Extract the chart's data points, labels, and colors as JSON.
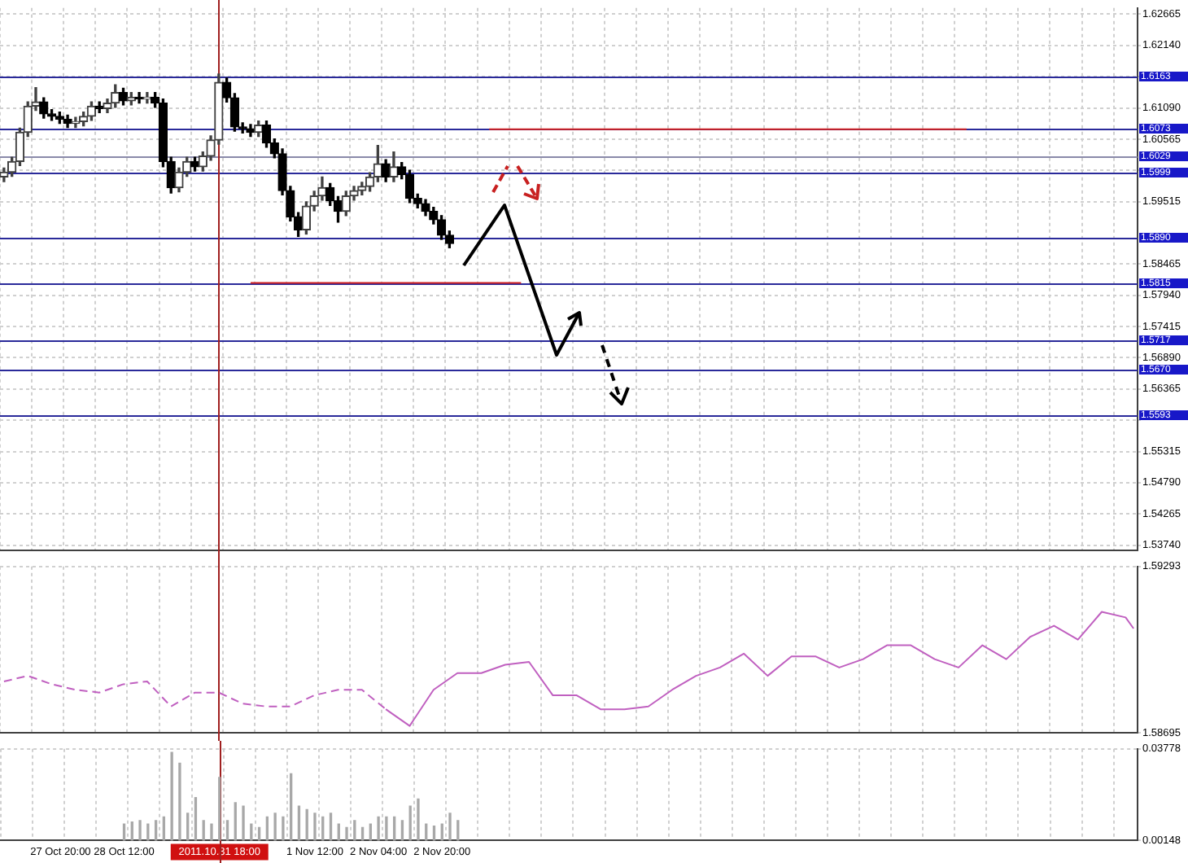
{
  "chart_data": [
    {
      "type": "candlestick",
      "categories": [
        null,
        null,
        null,
        null,
        null,
        null,
        null,
        "27 Oct 20:00",
        null,
        null,
        null,
        null,
        null,
        null,
        null,
        "28 Oct 12:00",
        null,
        null,
        null,
        null,
        null,
        null,
        null,
        null,
        null,
        null,
        null,
        "2011.10.31 18:00",
        null,
        null,
        null,
        null,
        null,
        null,
        null,
        null,
        null,
        null,
        null,
        "1 Nov 12:00",
        null,
        null,
        null,
        null,
        null,
        null,
        null,
        "2 Nov 04:00",
        null,
        null,
        null,
        null,
        null,
        null,
        null,
        "2 Nov 20:00",
        null,
        null,
        null,
        null,
        null,
        null,
        null,
        null,
        null,
        null,
        null,
        null,
        null,
        null,
        null,
        null,
        null,
        null,
        null,
        null,
        null,
        null,
        null,
        null,
        null,
        null,
        null,
        null,
        null,
        null,
        null,
        null,
        null,
        null,
        null,
        null,
        null,
        null,
        null,
        null,
        null,
        null,
        null,
        null,
        null,
        null,
        null,
        null,
        null,
        null,
        null,
        null,
        null,
        null,
        null,
        null,
        null,
        null,
        null,
        null,
        null,
        null,
        null,
        null,
        null,
        null,
        null,
        null,
        null,
        null,
        null,
        null,
        null,
        null,
        null,
        null,
        null,
        null,
        null,
        null,
        null,
        null,
        null,
        null,
        null,
        null,
        null
      ],
      "ohlc": [
        [
          1.5993,
          1.6008,
          1.5985,
          1.6001
        ],
        [
          1.6001,
          1.6026,
          1.5994,
          1.6019
        ],
        [
          1.6019,
          1.6075,
          1.6012,
          1.6068
        ],
        [
          1.6068,
          1.6119,
          1.6061,
          1.6112
        ],
        [
          1.6112,
          1.6143,
          1.6105,
          1.6119
        ],
        [
          1.6119,
          1.6126,
          1.6092,
          1.6099
        ],
        [
          1.6099,
          1.6106,
          1.6088,
          1.6095
        ],
        [
          1.6095,
          1.6102,
          1.6083,
          1.609
        ],
        [
          1.609,
          1.6097,
          1.6076,
          1.6083
        ],
        [
          1.6083,
          1.6093,
          1.6076,
          1.6086
        ],
        [
          1.6086,
          1.6102,
          1.6079,
          1.6095
        ],
        [
          1.6095,
          1.6119,
          1.6088,
          1.6112
        ],
        [
          1.6112,
          1.6119,
          1.6101,
          1.6108
        ],
        [
          1.6108,
          1.6124,
          1.6101,
          1.6117
        ],
        [
          1.6117,
          1.6148,
          1.611,
          1.6135
        ],
        [
          1.6135,
          1.6142,
          1.6114,
          1.6121
        ],
        [
          1.6121,
          1.6135,
          1.6114,
          1.6127
        ],
        [
          1.6127,
          1.6135,
          1.6117,
          1.6124
        ],
        [
          1.6124,
          1.6135,
          1.6117,
          1.6127
        ],
        [
          1.6127,
          1.6135,
          1.611,
          1.6117
        ],
        [
          1.6117,
          1.6124,
          1.601,
          1.6019
        ],
        [
          1.6019,
          1.6026,
          1.5966,
          1.5975
        ],
        [
          1.5975,
          1.6008,
          1.5968,
          1.6001
        ],
        [
          1.6001,
          1.6026,
          1.5994,
          1.6019
        ],
        [
          1.6019,
          1.6026,
          1.6003,
          1.601
        ],
        [
          1.601,
          1.6035,
          1.6003,
          1.6028
        ],
        [
          1.6028,
          1.6062,
          1.6021,
          1.6055
        ],
        [
          1.6055,
          1.6166,
          1.6048,
          1.6152
        ],
        [
          1.6152,
          1.6159,
          1.6119,
          1.6126
        ],
        [
          1.6126,
          1.6133,
          1.607,
          1.6077
        ],
        [
          1.6077,
          1.6084,
          1.6067,
          1.6074
        ],
        [
          1.6074,
          1.6081,
          1.6061,
          1.6068
        ],
        [
          1.6068,
          1.6087,
          1.6061,
          1.608
        ],
        [
          1.608,
          1.6087,
          1.6043,
          1.605
        ],
        [
          1.605,
          1.6057,
          1.6025,
          1.6032
        ],
        [
          1.6032,
          1.604,
          1.5963,
          1.597
        ],
        [
          1.597,
          1.5977,
          1.5919,
          1.5926
        ],
        [
          1.5926,
          1.5933,
          1.5893,
          1.5904
        ],
        [
          1.5904,
          1.5951,
          1.5897,
          1.5944
        ],
        [
          1.5944,
          1.5969,
          1.5936,
          1.5961
        ],
        [
          1.5961,
          1.5993,
          1.5954,
          1.5975
        ],
        [
          1.5975,
          1.5982,
          1.5945,
          1.5953
        ],
        [
          1.5953,
          1.596,
          1.5917,
          1.5935
        ],
        [
          1.5935,
          1.5969,
          1.5928,
          1.5961
        ],
        [
          1.5961,
          1.5977,
          1.5954,
          1.597
        ],
        [
          1.597,
          1.5984,
          1.5963,
          1.5977
        ],
        [
          1.5977,
          1.6,
          1.5969,
          1.5993
        ],
        [
          1.5993,
          1.6046,
          1.5985,
          1.6015
        ],
        [
          1.6015,
          1.6022,
          1.5985,
          1.5993
        ],
        [
          1.5993,
          1.6035,
          1.5985,
          1.601
        ],
        [
          1.601,
          1.6017,
          1.599,
          1.5997
        ],
        [
          1.5997,
          1.6004,
          1.595,
          1.5957
        ],
        [
          1.5957,
          1.5964,
          1.5941,
          1.5948
        ],
        [
          1.5948,
          1.5955,
          1.5928,
          1.5935
        ],
        [
          1.5935,
          1.5942,
          1.5914,
          1.5921
        ],
        [
          1.5921,
          1.5928,
          1.5888,
          1.5895
        ],
        [
          1.5895,
          1.5902,
          1.5874,
          1.5881
        ],
        null,
        null,
        null,
        null,
        null,
        null,
        null,
        null,
        null,
        null,
        null,
        null,
        null,
        null,
        null,
        null,
        null,
        null,
        null,
        null,
        null,
        null,
        null,
        null,
        null,
        null,
        null,
        null,
        null,
        null,
        null,
        null,
        null,
        null,
        null,
        null,
        null,
        null,
        null,
        null,
        null,
        null,
        null,
        null,
        null,
        null,
        null,
        null,
        null,
        null,
        null,
        null,
        null,
        null,
        null,
        null,
        null,
        null,
        null,
        null,
        null,
        null,
        null,
        null,
        null,
        null,
        null,
        null,
        null,
        null,
        null,
        null,
        null,
        null,
        null,
        null,
        null,
        null,
        null,
        null,
        null,
        null,
        null,
        null,
        null,
        null
      ],
      "series": [
        {
          "type": "line",
          "color": "#d02020",
          "values": [
            null,
            null,
            null,
            null,
            null,
            null,
            null,
            null,
            null,
            null,
            null,
            null,
            null,
            null,
            null,
            null,
            null,
            null,
            null,
            null,
            null,
            null,
            null,
            null,
            null,
            null,
            null,
            null,
            null,
            null,
            null,
            null,
            null,
            null,
            null,
            null,
            null,
            null,
            null,
            null,
            null,
            null,
            null,
            null,
            null,
            null,
            null,
            null,
            null,
            null,
            null,
            null,
            null,
            null,
            null,
            null,
            null,
            null,
            null,
            null,
            null,
            1.6073,
            null,
            null,
            null,
            null,
            null,
            null,
            null,
            null,
            null,
            null,
            null,
            null,
            null,
            null,
            null,
            null,
            null,
            null,
            null,
            null,
            null,
            null,
            null,
            null,
            null,
            null,
            null,
            null,
            null,
            null,
            null,
            null,
            null,
            null,
            null,
            null,
            null,
            null,
            null,
            null,
            null,
            null,
            null,
            null,
            null,
            null,
            null,
            null,
            null,
            null,
            null,
            null,
            null,
            null,
            null,
            null,
            null,
            null,
            null,
            1.6073,
            null,
            null,
            null,
            null,
            null,
            null,
            null,
            null,
            null,
            null,
            null,
            null,
            null,
            null,
            null,
            null,
            null,
            null,
            null,
            null,
            null
          ]
        },
        {
          "type": "line",
          "color": "#d02020",
          "values": [
            null,
            null,
            null,
            null,
            null,
            null,
            null,
            null,
            null,
            null,
            null,
            null,
            null,
            null,
            null,
            null,
            null,
            null,
            null,
            null,
            null,
            null,
            null,
            null,
            null,
            null,
            null,
            null,
            null,
            null,
            null,
            1.5815,
            null,
            null,
            null,
            null,
            null,
            null,
            null,
            null,
            null,
            null,
            null,
            null,
            null,
            null,
            null,
            null,
            null,
            null,
            null,
            null,
            null,
            null,
            null,
            null,
            null,
            null,
            null,
            null,
            null,
            null,
            null,
            null,
            null,
            1.5815,
            null,
            null,
            null,
            null,
            null,
            null,
            null,
            null,
            null,
            null,
            null,
            null,
            null,
            null,
            null,
            null,
            null,
            null,
            null,
            null,
            null,
            null,
            null,
            null,
            null,
            null,
            null,
            null,
            null,
            null,
            null,
            null,
            null,
            null,
            null,
            null,
            null,
            null,
            null,
            null,
            null,
            null,
            null,
            null,
            null,
            null,
            null,
            null,
            null,
            null,
            null,
            null,
            null,
            null,
            null,
            null,
            null,
            null,
            null,
            null,
            null,
            null,
            null,
            null,
            null,
            null,
            null,
            null,
            null,
            null,
            null,
            null,
            null,
            null,
            null,
            null,
            null
          ]
        }
      ],
      "ylim": [
        1.5365,
        1.6277
      ],
      "yticks": [
        {
          "value": 1.62665,
          "label": "1.62665"
        },
        {
          "value": 1.6214,
          "label": "1.62140"
        },
        {
          "value": 1.61615,
          "label": null
        },
        {
          "value": 1.6109,
          "label": "1.61090"
        },
        {
          "value": 1.60565,
          "label": "1.60565"
        },
        {
          "value": 1.6004,
          "label": null
        },
        {
          "value": 1.59515,
          "label": "1.59515"
        },
        {
          "value": 1.58465,
          "label": "1.58465"
        },
        {
          "value": 1.5794,
          "label": "1.57940"
        },
        {
          "value": 1.57415,
          "label": "1.57415"
        },
        {
          "value": 1.5689,
          "label": "1.56890"
        },
        {
          "value": 1.56365,
          "label": "1.56365"
        },
        {
          "value": 1.5584,
          "label": null
        },
        {
          "value": 1.55315,
          "label": "1.55315"
        },
        {
          "value": 1.5479,
          "label": "1.54790"
        },
        {
          "value": 1.54265,
          "label": "1.54265"
        },
        {
          "value": 1.5374,
          "label": "1.53740"
        }
      ],
      "ref_lines": [
        {
          "axis": "y",
          "value": 1.6163,
          "label": "1.6163",
          "color": "#2a2a9a"
        },
        {
          "axis": "y",
          "value": 1.6073,
          "label": "1.6073",
          "color": "#2a2a9a"
        },
        {
          "axis": "y",
          "value": 1.6029,
          "label": "1.6029",
          "color": "#8a8aaa"
        },
        {
          "axis": "y",
          "value": 1.5999,
          "label": "1.5999",
          "color": "#2a2a9a"
        },
        {
          "axis": "y",
          "value": 1.589,
          "label": "1.5890",
          "color": "#2a2a9a"
        },
        {
          "axis": "y",
          "value": 1.5815,
          "label": "1.5815",
          "color": "#2a2a9a"
        },
        {
          "axis": "y",
          "value": 1.5717,
          "label": "1.5717",
          "color": "#2a2a9a"
        },
        {
          "axis": "y",
          "value": 1.567,
          "label": "1.5670",
          "color": "#2a2a9a"
        },
        {
          "axis": "y",
          "value": 1.5593,
          "label": "1.5593",
          "color": "#2a2a9a"
        },
        {
          "axis": "x",
          "value": "2011.10.31 18:00",
          "color": "#a02020"
        }
      ],
      "grid": true,
      "legend": false,
      "tick_labels": "y"
    },
    {
      "type": "line",
      "categories": [
        null,
        null,
        null,
        null,
        null,
        null,
        null,
        "27 Oct 20:00",
        null,
        null,
        null,
        null,
        null,
        null,
        null,
        "28 Oct 12:00",
        null,
        null,
        null,
        null,
        null,
        null,
        null,
        null,
        null,
        null,
        null,
        "2011.10.31 18:00",
        null,
        null,
        null,
        null,
        null,
        null,
        null,
        null,
        null,
        null,
        null,
        "1 Nov 12:00",
        null,
        null,
        null,
        null,
        null,
        null,
        null,
        "2 Nov 04:00",
        null,
        null,
        null,
        null,
        null,
        null,
        null,
        "2 Nov 20:00",
        null,
        null,
        null,
        null,
        null,
        null,
        null,
        null,
        null,
        null,
        null,
        null,
        null,
        null,
        null,
        null,
        null,
        null,
        null,
        null,
        null,
        null,
        null,
        null,
        null,
        null,
        null,
        null,
        null,
        null,
        null,
        null,
        null,
        null,
        null,
        null,
        null,
        null,
        null,
        null,
        null,
        null,
        null,
        null,
        null,
        null,
        null,
        null,
        null,
        null,
        null,
        null,
        null,
        null,
        null,
        null,
        null,
        null,
        null,
        null,
        null,
        null,
        null,
        null,
        null,
        null,
        null,
        null,
        null,
        null,
        null,
        null,
        null,
        null,
        null,
        null,
        null,
        null,
        null,
        null,
        null,
        null,
        null,
        null,
        null,
        null,
        null
      ],
      "series": [
        {
          "color": "#c060c0",
          "line_style": "dashed",
          "values": [
            1.5888,
            null,
            null,
            1.589,
            null,
            null,
            1.5887,
            null,
            null,
            1.5885,
            null,
            null,
            1.5884,
            null,
            null,
            1.5887,
            null,
            null,
            1.5888,
            null,
            null,
            1.5879,
            null,
            null,
            1.5884,
            null,
            null,
            1.5884,
            null,
            null,
            1.588,
            null,
            null,
            1.5879,
            null,
            null,
            1.5879,
            null,
            null,
            1.5883,
            null,
            null,
            1.5885,
            null,
            null,
            1.5885,
            null,
            null,
            1.5878,
            null,
            null,
            null,
            null,
            null,
            null,
            null,
            null,
            null,
            null,
            null,
            null,
            null,
            null,
            null,
            null,
            null,
            null,
            null,
            null,
            null,
            null,
            null,
            null,
            null,
            null,
            null,
            null,
            null,
            null,
            null,
            null,
            null,
            null,
            null,
            null,
            null,
            null,
            null,
            null,
            null,
            null,
            null,
            null,
            null,
            null,
            null,
            null,
            null,
            null,
            null,
            null,
            null,
            null,
            null,
            null,
            null,
            null,
            null,
            null,
            null,
            null,
            null,
            null,
            null,
            null,
            null,
            null,
            null,
            null,
            null,
            null,
            null,
            null,
            null,
            null,
            null,
            null,
            null,
            null,
            null,
            null,
            null,
            null,
            null,
            null,
            null,
            null,
            null,
            null,
            null,
            null,
            null,
            null
          ]
        },
        {
          "color": "#c060c0",
          "line_style": "solid",
          "values": [
            null,
            null,
            null,
            null,
            null,
            null,
            null,
            null,
            null,
            null,
            null,
            null,
            null,
            null,
            null,
            null,
            null,
            null,
            null,
            null,
            null,
            null,
            null,
            null,
            null,
            null,
            null,
            null,
            null,
            null,
            null,
            null,
            null,
            null,
            null,
            null,
            null,
            null,
            null,
            null,
            null,
            null,
            null,
            null,
            null,
            null,
            null,
            null,
            1.5878,
            null,
            null,
            1.5872,
            null,
            null,
            1.5885,
            null,
            null,
            1.5891,
            null,
            null,
            1.5891,
            null,
            null,
            1.5894,
            null,
            null,
            1.5895,
            null,
            null,
            1.5883,
            null,
            null,
            1.5883,
            null,
            null,
            1.5878,
            null,
            null,
            1.5878,
            null,
            null,
            1.5879,
            null,
            null,
            1.5885,
            null,
            null,
            1.589,
            null,
            null,
            1.5893,
            null,
            null,
            1.5898,
            null,
            null,
            1.589,
            null,
            null,
            1.5897,
            null,
            null,
            1.5897,
            null,
            null,
            1.5893,
            null,
            null,
            1.5896,
            null,
            null,
            1.5901,
            null,
            null,
            1.5901,
            null,
            null,
            1.5896,
            null,
            null,
            1.5893,
            null,
            null,
            1.5901,
            null,
            null,
            1.5896,
            null,
            null,
            1.5904,
            null,
            null,
            1.5908,
            null,
            null,
            1.5903,
            null,
            null,
            1.5913,
            null,
            null,
            1.5911,
            1.5907
          ]
        }
      ],
      "ylim": [
        1.58695,
        1.59293
      ],
      "yticks": [
        1.59293,
        1.58695
      ],
      "ref_lines": [
        {
          "axis": "x",
          "value": "2011.10.31 18:00",
          "color": "#a02020"
        }
      ],
      "grid": true,
      "legend": false,
      "tick_labels": "y"
    },
    {
      "type": "bar",
      "categories": [
        null,
        null,
        null,
        null,
        null,
        null,
        null,
        "27 Oct 20:00",
        null,
        null,
        null,
        null,
        null,
        null,
        null,
        "28 Oct 12:00",
        null,
        null,
        null,
        null,
        null,
        null,
        null,
        null,
        null,
        null,
        null,
        "2011.10.31 18:00",
        null,
        null,
        null,
        null,
        null,
        null,
        null,
        null,
        null,
        null,
        null,
        "1 Nov 12:00",
        null,
        null,
        null,
        null,
        null,
        null,
        null,
        "2 Nov 04:00",
        null,
        null,
        null,
        null,
        null,
        null,
        null,
        "2 Nov 20:00",
        null,
        null,
        null,
        null,
        null,
        null,
        null,
        null,
        null,
        null,
        null,
        null,
        null,
        null,
        null,
        null,
        null,
        null,
        null,
        null,
        null,
        null,
        null,
        null,
        null,
        null,
        null,
        null,
        null,
        null,
        null,
        null,
        null,
        null,
        null,
        null,
        null,
        null,
        null,
        null,
        null,
        null,
        null,
        null,
        null,
        null,
        null,
        null,
        null,
        null,
        null,
        null,
        null,
        null,
        null,
        null,
        null,
        null,
        null,
        null,
        null,
        null,
        null,
        null,
        null,
        null,
        null,
        null,
        null,
        null,
        null,
        null,
        null,
        null,
        null,
        null,
        null,
        null,
        null,
        null,
        null,
        null,
        null,
        null,
        null,
        null,
        null
      ],
      "values": [
        null,
        null,
        null,
        null,
        null,
        null,
        null,
        null,
        null,
        null,
        null,
        null,
        null,
        null,
        null,
        0.008,
        0.0088,
        0.0094,
        0.008,
        0.0094,
        0.0108,
        0.0364,
        0.0321,
        0.0123,
        0.0185,
        0.0094,
        0.008,
        0.0265,
        0.0094,
        0.0165,
        0.0151,
        0.008,
        0.0066,
        0.0108,
        0.0123,
        0.0108,
        0.0279,
        0.0151,
        0.0137,
        0.0123,
        0.0108,
        0.0123,
        0.008,
        0.0066,
        0.0094,
        0.0066,
        0.008,
        0.0108,
        0.0108,
        0.0108,
        0.0094,
        0.0151,
        0.0179,
        0.008,
        0.0072,
        0.008,
        0.0123,
        0.0094,
        null,
        null,
        null,
        null,
        null,
        null,
        null,
        null,
        null,
        null,
        null,
        null,
        null,
        null,
        null,
        null,
        null,
        null,
        null,
        null,
        null,
        null,
        null,
        null,
        null,
        null,
        null,
        null,
        null,
        null,
        null,
        null,
        null,
        null,
        null,
        null,
        null,
        null,
        null,
        null,
        null,
        null,
        null,
        null,
        null,
        null,
        null,
        null,
        null,
        null,
        null,
        null,
        null,
        null,
        null,
        null,
        null,
        null,
        null,
        null,
        null,
        null,
        null,
        null,
        null,
        null,
        null,
        null,
        null,
        null,
        null,
        null,
        null,
        null,
        null,
        null,
        null,
        null,
        null,
        null,
        null,
        null,
        null,
        null,
        null
      ],
      "color": "#a8a8a8",
      "ylim": [
        0.00148,
        0.03778
      ],
      "yticks": [
        0.03778,
        0.00148
      ],
      "ref_lines": [
        {
          "axis": "x",
          "value": "2011.10.31 18:00",
          "color": "#a02020"
        }
      ],
      "grid": true,
      "legend": false
    }
  ]
}
